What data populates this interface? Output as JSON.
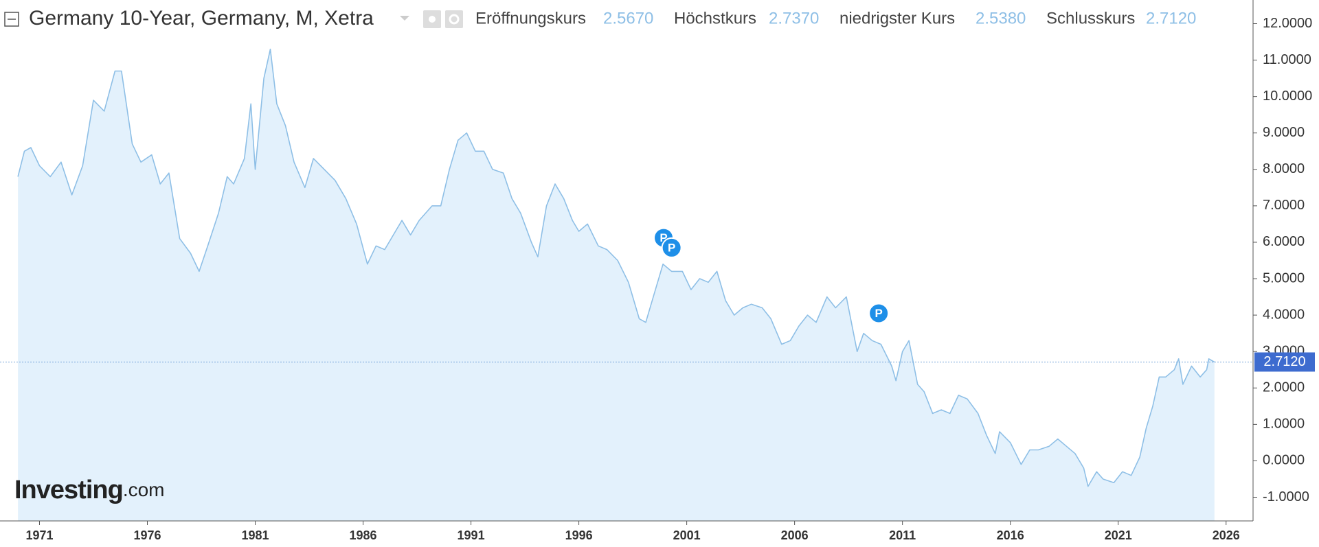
{
  "chart_data": {
    "type": "area",
    "title": "Germany 10-Year, Germany, M, Xetra",
    "quotes": [
      {
        "label": "Eröffnungskurs",
        "value": "2.5670"
      },
      {
        "label": "Höchstkurs",
        "value": "2.7370"
      },
      {
        "label": "niedrigster Kurs",
        "value": "2.5380"
      },
      {
        "label": "Schlusskurs",
        "value": "2.7120"
      }
    ],
    "logo": {
      "brand": "Investing",
      "suffix": ".com"
    },
    "line_color": "#8ebfe6",
    "fill_color": "#e3f1fc",
    "x": [
      1970.0,
      1970.3,
      1970.6,
      1971.0,
      1971.5,
      1972.0,
      1972.5,
      1973.0,
      1973.5,
      1974.0,
      1974.5,
      1974.8,
      1975.3,
      1975.7,
      1976.2,
      1976.6,
      1977.0,
      1977.5,
      1978.0,
      1978.4,
      1978.8,
      1979.3,
      1979.7,
      1980.0,
      1980.5,
      1980.8,
      1981.0,
      1981.4,
      1981.7,
      1982.0,
      1982.4,
      1982.8,
      1983.3,
      1983.7,
      1984.2,
      1984.7,
      1985.2,
      1985.7,
      1986.2,
      1986.6,
      1987.0,
      1987.5,
      1987.8,
      1988.2,
      1988.6,
      1989.2,
      1989.6,
      1990.0,
      1990.4,
      1990.8,
      1991.2,
      1991.6,
      1992.0,
      1992.5,
      1992.9,
      1993.3,
      1993.8,
      1994.1,
      1994.5,
      1994.9,
      1995.3,
      1995.7,
      1996.0,
      1996.4,
      1996.9,
      1997.3,
      1997.8,
      1998.3,
      1998.8,
      1999.1,
      1999.5,
      1999.9,
      2000.3,
      2000.8,
      2001.2,
      2001.6,
      2002.0,
      2002.4,
      2002.8,
      2003.2,
      2003.6,
      2004.0,
      2004.5,
      2004.9,
      2005.4,
      2005.8,
      2006.2,
      2006.6,
      2007.0,
      2007.5,
      2007.9,
      2008.4,
      2008.9,
      2009.2,
      2009.6,
      2010.0,
      2010.5,
      2010.7,
      2011.0,
      2011.3,
      2011.7,
      2012.0,
      2012.4,
      2012.8,
      2013.2,
      2013.6,
      2014.0,
      2014.5,
      2014.9,
      2015.3,
      2015.5,
      2016.0,
      2016.5,
      2016.9,
      2017.3,
      2017.8,
      2018.2,
      2018.6,
      2019.0,
      2019.4,
      2019.6,
      2020.0,
      2020.3,
      2020.8,
      2021.2,
      2021.6,
      2022.0,
      2022.3,
      2022.6,
      2022.9,
      2023.2,
      2023.6,
      2023.8,
      2024.0,
      2024.4,
      2024.8,
      2025.1,
      2025.2,
      2025.46
    ],
    "values": [
      7.8,
      8.5,
      8.6,
      8.1,
      7.8,
      8.2,
      7.3,
      8.1,
      9.9,
      9.6,
      10.7,
      10.7,
      8.7,
      8.2,
      8.4,
      7.6,
      7.9,
      6.1,
      5.7,
      5.2,
      5.9,
      6.8,
      7.8,
      7.6,
      8.3,
      9.8,
      8.0,
      10.5,
      11.3,
      9.8,
      9.2,
      8.2,
      7.5,
      8.3,
      8.0,
      7.7,
      7.2,
      6.5,
      5.4,
      5.9,
      5.8,
      6.3,
      6.6,
      6.2,
      6.6,
      7.0,
      7.0,
      8.0,
      8.8,
      9.0,
      8.5,
      8.5,
      8.0,
      7.9,
      7.2,
      6.8,
      6.0,
      5.6,
      7.0,
      7.6,
      7.2,
      6.6,
      6.3,
      6.5,
      5.9,
      5.8,
      5.5,
      4.9,
      3.9,
      3.8,
      4.6,
      5.4,
      5.2,
      5.2,
      4.7,
      5.0,
      4.9,
      5.2,
      4.4,
      4.0,
      4.2,
      4.3,
      4.2,
      3.9,
      3.2,
      3.3,
      3.7,
      4.0,
      3.8,
      4.5,
      4.2,
      4.5,
      3.0,
      3.5,
      3.3,
      3.2,
      2.6,
      2.2,
      3.0,
      3.3,
      2.1,
      1.9,
      1.3,
      1.4,
      1.3,
      1.8,
      1.7,
      1.3,
      0.7,
      0.2,
      0.8,
      0.5,
      -0.1,
      0.3,
      0.3,
      0.4,
      0.6,
      0.4,
      0.2,
      -0.2,
      -0.7,
      -0.3,
      -0.5,
      -0.6,
      -0.3,
      -0.4,
      0.1,
      0.9,
      1.5,
      2.3,
      2.3,
      2.5,
      2.8,
      2.1,
      2.6,
      2.3,
      2.5,
      2.8,
      2.712
    ],
    "last_value": {
      "value": 2.712,
      "label": "2.7120"
    },
    "annotations": [
      {
        "label": "P",
        "x": 1999.93,
        "y": 6.12
      },
      {
        "label": "P",
        "x": 2000.3,
        "y": 5.85
      },
      {
        "label": "P",
        "x": 2009.9,
        "y": 4.05
      }
    ],
    "xlim": [
      1969.17,
      2027.25
    ],
    "xticks": [
      1971,
      1976,
      1981,
      1986,
      1991,
      1996,
      2001,
      2006,
      2011,
      2016,
      2021,
      2026
    ],
    "ylim": [
      -1.65,
      12.65
    ],
    "yticks": [
      {
        "value": -1,
        "label": "-1.0000"
      },
      {
        "value": 0,
        "label": "0.0000"
      },
      {
        "value": 1,
        "label": "1.0000"
      },
      {
        "value": 2,
        "label": "2.0000"
      },
      {
        "value": 3,
        "label": "3.0000"
      },
      {
        "value": 4,
        "label": "4.0000"
      },
      {
        "value": 5,
        "label": "5.0000"
      },
      {
        "value": 6,
        "label": "6.0000"
      },
      {
        "value": 7,
        "label": "7.0000"
      },
      {
        "value": 8,
        "label": "8.0000"
      },
      {
        "value": 9,
        "label": "9.0000"
      },
      {
        "value": 10,
        "label": "10.0000"
      },
      {
        "value": 11,
        "label": "11.0000"
      },
      {
        "value": 12,
        "label": "12.0000"
      }
    ]
  }
}
